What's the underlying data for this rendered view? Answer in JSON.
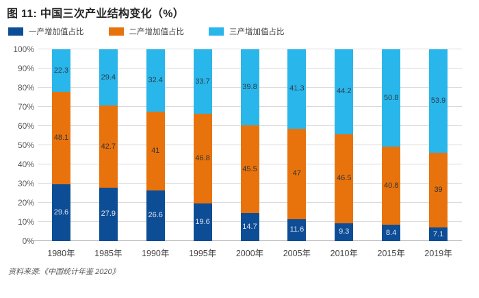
{
  "title": "图 11: 中国三次产业结构变化（%）",
  "source": "资料来源:《中国统计年鉴 2020》",
  "legend": [
    {
      "label": "一产增加值占比",
      "color": "#0d4d96"
    },
    {
      "label": "二产增加值占比",
      "color": "#e8730d"
    },
    {
      "label": "三产增加值占比",
      "color": "#29b6ea"
    }
  ],
  "chart_data": {
    "type": "bar",
    "stacked": true,
    "title": "图 11: 中国三次产业结构变化（%）",
    "categories": [
      "1980年",
      "1985年",
      "1990年",
      "1995年",
      "2000年",
      "2005年",
      "2010年",
      "2015年",
      "2019年"
    ],
    "series": [
      {
        "name": "一产增加值占比",
        "color": "#0d4d96",
        "label_color": "#dde3ec",
        "values": [
          29.6,
          27.9,
          26.6,
          19.6,
          14.7,
          11.6,
          9.3,
          8.4,
          7.1
        ]
      },
      {
        "name": "二产增加值占比",
        "color": "#e8730d",
        "label_color": "#333333",
        "values": [
          48.1,
          42.7,
          41,
          46.8,
          45.5,
          47,
          46.5,
          40.8,
          39
        ]
      },
      {
        "name": "三产增加值占比",
        "color": "#29b6ea",
        "label_color": "#2e3c48",
        "values": [
          22.3,
          29.4,
          32.4,
          33.7,
          39.8,
          41.3,
          44.2,
          50.8,
          53.9
        ]
      }
    ],
    "y_ticks": [
      "0%",
      "10%",
      "20%",
      "30%",
      "40%",
      "50%",
      "60%",
      "70%",
      "80%",
      "90%",
      "100%"
    ],
    "ylim": [
      0,
      100
    ],
    "grid": true,
    "legend_position": "top-left"
  }
}
